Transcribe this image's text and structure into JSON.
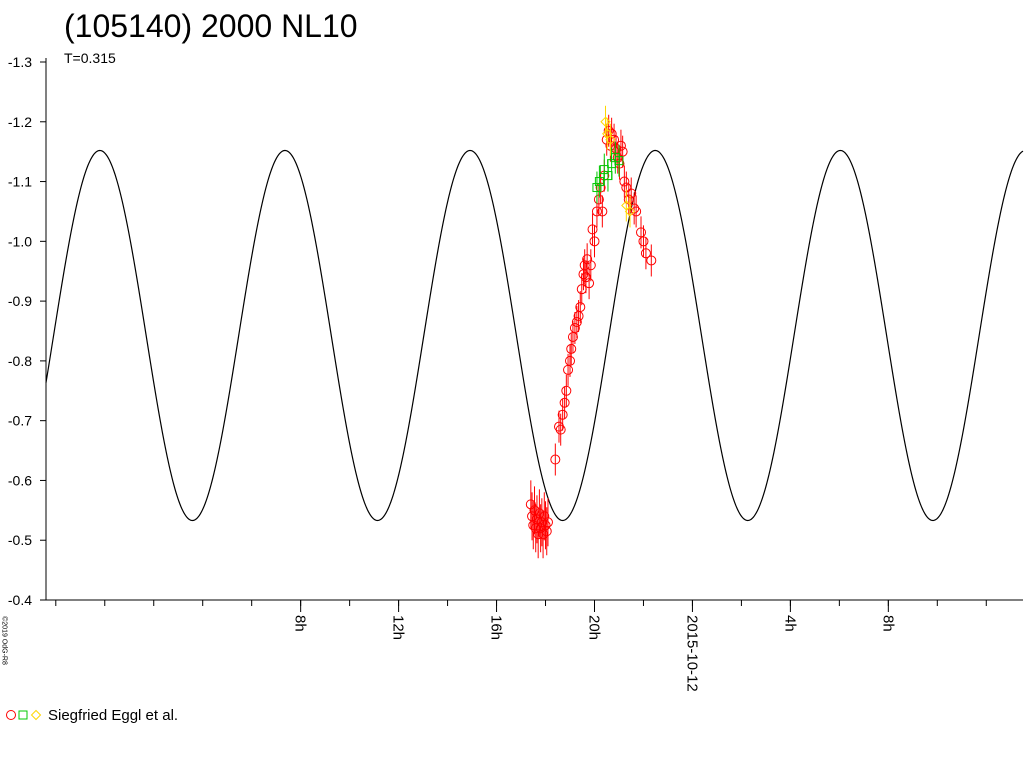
{
  "header": {
    "title": "(105140) 2000 NL10",
    "subtitle": "T=0.315"
  },
  "copyright": "©2019 OdG-R8",
  "legend": {
    "label": "Siegfried Eggl et al.",
    "markers": [
      "red-circle",
      "green-square",
      "yellow-diamond"
    ]
  },
  "colors": {
    "curve": "#000000",
    "obs_red": "#ff0000",
    "obs_green": "#00c800",
    "obs_yellow": "#ffd700"
  },
  "chart_data": {
    "type": "scatter",
    "title": "(105140) 2000 NL10",
    "subtitle": "T=0.315",
    "xlabel": "",
    "ylabel": "",
    "x_unit": "hours from 2015-10-12 00:00",
    "xlim": [
      -26.4,
      13.5
    ],
    "ylim": [
      -0.4,
      -1.3
    ],
    "y_ticks": [
      -1.3,
      -1.2,
      -1.1,
      -1.0,
      -0.9,
      -0.8,
      -0.7,
      -0.6,
      -0.5,
      -0.4
    ],
    "y_tick_labels": [
      "-1.3",
      "-1.2",
      "-1.1",
      "-1.0",
      "-0.9",
      "-0.8",
      "-0.7",
      "-0.6",
      "-0.5",
      "-0.4"
    ],
    "x_ticks": [
      -16,
      -12,
      -8,
      -4,
      0,
      4,
      8
    ],
    "x_tick_labels": [
      "8h",
      "12h",
      "16h",
      "20h",
      "2015-10-12",
      "4h",
      "8h"
    ],
    "x_minor_step": 2,
    "grid": false,
    "legend_position": "bottom-left",
    "model_curve": {
      "period_hours": 7.56,
      "min_mag": -0.533,
      "max_mag": -1.152,
      "minimum_at_hours": -5.3
    },
    "series": [
      {
        "name": "Siegfried Eggl et al.",
        "marker": "circle",
        "color": "red",
        "x": [
          -6.6,
          -6.55,
          -6.5,
          -6.45,
          -6.4,
          -6.35,
          -6.3,
          -6.25,
          -6.2,
          -6.15,
          -6.1,
          -6.05,
          -6.0,
          -5.95,
          -5.9,
          -5.6,
          -5.45,
          -5.38,
          -5.3,
          -5.22,
          -5.15,
          -5.08,
          -5.0,
          -4.95,
          -4.88,
          -4.8,
          -4.72,
          -4.65,
          -4.58,
          -4.52,
          -4.45,
          -4.4,
          -4.35,
          -4.3,
          -4.22,
          -4.15,
          -4.08,
          -4.0,
          -3.9,
          -3.82,
          -3.75,
          -3.68,
          -3.6,
          -3.5,
          -3.42,
          -3.35,
          -3.3,
          -3.2,
          -3.12,
          -3.05,
          -2.98,
          -2.92,
          -2.85,
          -2.78,
          -2.7,
          -2.6,
          -2.5,
          -2.38,
          -2.3,
          -2.1,
          -2.0,
          -1.9,
          -1.68
        ],
        "y": [
          -0.56,
          -0.54,
          -0.525,
          -0.55,
          -0.52,
          -0.535,
          -0.51,
          -0.545,
          -0.52,
          -0.53,
          -0.51,
          -0.54,
          -0.525,
          -0.515,
          -0.53,
          -0.635,
          -0.69,
          -0.685,
          -0.71,
          -0.73,
          -0.75,
          -0.785,
          -0.8,
          -0.82,
          -0.84,
          -0.855,
          -0.865,
          -0.875,
          -0.89,
          -0.92,
          -0.945,
          -0.96,
          -0.94,
          -0.97,
          -0.93,
          -0.96,
          -1.02,
          -1.0,
          -1.05,
          -1.07,
          -1.09,
          -1.05,
          -1.11,
          -1.17,
          -1.185,
          -1.16,
          -1.18,
          -1.17,
          -1.155,
          -1.14,
          -1.13,
          -1.16,
          -1.15,
          -1.1,
          -1.09,
          -1.07,
          -1.08,
          -1.055,
          -1.05,
          -1.015,
          -1.0,
          -0.98,
          -0.968
        ]
      },
      {
        "name": "",
        "marker": "square",
        "color": "green",
        "x": [
          -3.9,
          -3.8,
          -3.6,
          -3.45,
          -3.3,
          -3.15,
          -3.0
        ],
        "y": [
          -1.09,
          -1.1,
          -1.12,
          -1.11,
          -1.13,
          -1.14,
          -1.135
        ]
      },
      {
        "name": "",
        "marker": "diamond",
        "color": "yellow",
        "x": [
          -3.55,
          -3.48,
          -3.35,
          -2.7,
          -2.55
        ],
        "y": [
          -1.2,
          -1.18,
          -1.17,
          -1.06,
          -1.05
        ]
      }
    ]
  }
}
